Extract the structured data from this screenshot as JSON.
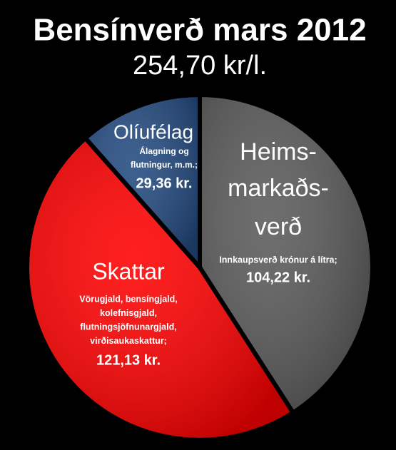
{
  "chart_data": {
    "type": "pie",
    "title": "Bensínverð mars 2012",
    "subtitle": "254,70 kr/l.",
    "categories": [
      [
        "Heims-",
        "markaðs-",
        "verð"
      ],
      [
        "Skattar"
      ],
      [
        "Olíufélag"
      ]
    ],
    "descriptions": [
      [
        "Innkaupsverð krónur á lítra;"
      ],
      [
        "Vörugjald, bensíngjald,",
        "kolefnisgjald,",
        "flutningsjöfnunargjald,",
        "virðisaukaskattur;"
      ],
      [
        "Álagning og",
        "flutningur, m.m.;"
      ]
    ],
    "values": [
      104.22,
      121.13,
      29.36
    ],
    "value_labels": [
      "104,22 kr.",
      "121,13 kr.",
      "29,36 kr."
    ],
    "colors": [
      "#5a5a5a",
      "#ff0000",
      "#234a80"
    ]
  }
}
